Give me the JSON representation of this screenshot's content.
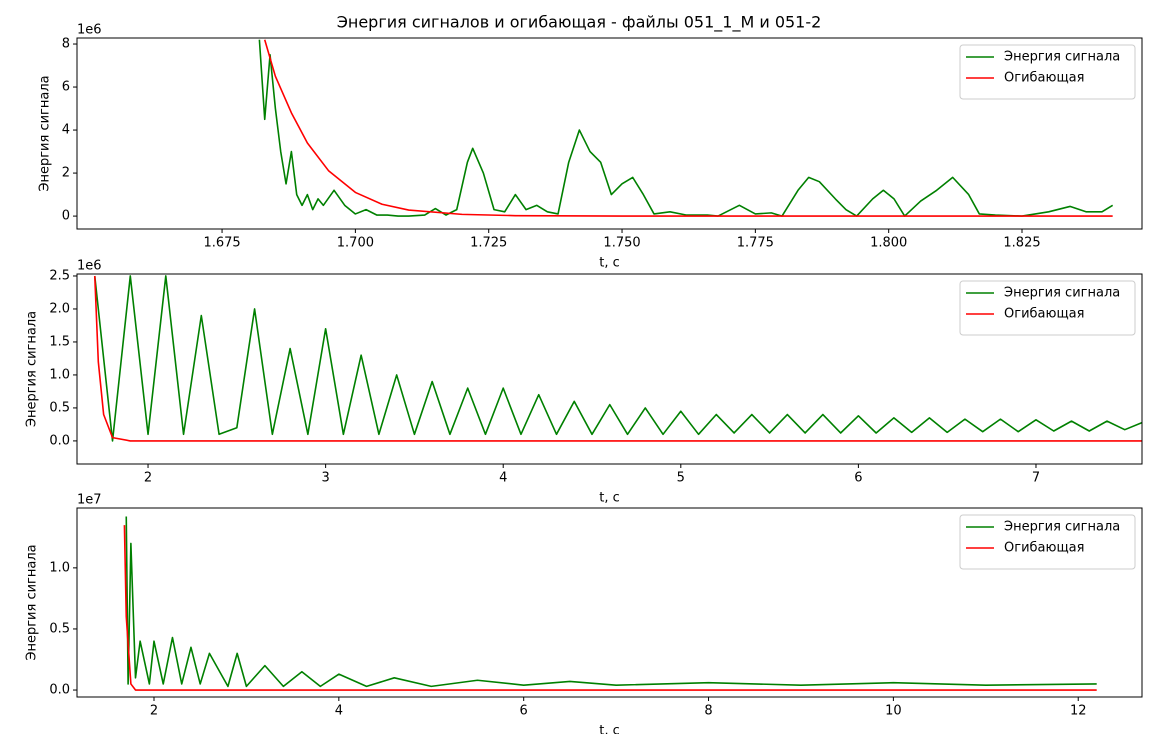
{
  "title": "Энергия сигналов и огибающая - файлы 051_1_M и 051-2",
  "chart_data": [
    {
      "type": "line",
      "x_label": "t, с",
      "y_label": "Энергия сигнала",
      "offset_label": "1e6",
      "legend": "upper right",
      "grid": false,
      "xlim": [
        1.6478,
        1.8475
      ],
      "ylim": [
        -0.6,
        8.28
      ],
      "xticks": [
        1.675,
        {
          "value": 1.7,
          "label": "1.700"
        },
        1.725,
        {
          "value": 1.75,
          "label": "1.750"
        },
        1.775,
        {
          "value": 1.8,
          "label": "1.800"
        },
        1.825
      ],
      "yticks": [
        0,
        2,
        4,
        6,
        8
      ],
      "series": [
        {
          "name": "Энергия сигнала",
          "color": "#008000",
          "x": [
            1.682,
            1.683,
            1.684,
            1.685,
            1.686,
            1.687,
            1.688,
            1.689,
            1.69,
            1.691,
            1.692,
            1.693,
            1.694,
            1.696,
            1.698,
            1.7,
            1.702,
            1.704,
            1.706,
            1.708,
            1.71,
            1.713,
            1.715,
            1.717,
            1.719,
            1.721,
            1.722,
            1.724,
            1.726,
            1.728,
            1.73,
            1.732,
            1.734,
            1.736,
            1.738,
            1.74,
            1.742,
            1.744,
            1.746,
            1.748,
            1.75,
            1.752,
            1.754,
            1.756,
            1.759,
            1.762,
            1.766,
            1.768,
            1.772,
            1.775,
            1.778,
            1.78,
            1.783,
            1.785,
            1.787,
            1.79,
            1.792,
            1.794,
            1.797,
            1.799,
            1.801,
            1.803,
            1.806,
            1.809,
            1.812,
            1.815,
            1.817,
            1.82,
            1.825,
            1.83,
            1.834,
            1.837,
            1.84,
            1.842
          ],
          "values": [
            8.2,
            4.5,
            7.5,
            5,
            3,
            1.5,
            3,
            1,
            0.5,
            1,
            0.3,
            0.8,
            0.5,
            1.2,
            0.5,
            0.1,
            0.3,
            0.05,
            0.05,
            0,
            0,
            0.05,
            0.35,
            0.05,
            0.3,
            2.5,
            3.15,
            2,
            0.3,
            0.2,
            1,
            0.3,
            0.5,
            0.2,
            0.1,
            2.5,
            4,
            3,
            2.5,
            1,
            1.5,
            1.8,
            1,
            0.1,
            0.2,
            0.05,
            0.05,
            0,
            0.5,
            0.1,
            0.15,
            0,
            1.2,
            1.8,
            1.6,
            0.8,
            0.3,
            0,
            0.8,
            1.2,
            0.8,
            0,
            0.7,
            1.2,
            1.8,
            1,
            0.1,
            0.05,
            0,
            0.2,
            0.45,
            0.2,
            0.2,
            0.5
          ]
        },
        {
          "name": "Огибающая",
          "color": "#ff0000",
          "x": [
            1.683,
            1.685,
            1.688,
            1.691,
            1.695,
            1.7,
            1.705,
            1.71,
            1.72,
            1.73,
            1.75,
            1.8,
            1.842
          ],
          "values": [
            8.2,
            6.5,
            4.8,
            3.4,
            2.1,
            1.1,
            0.55,
            0.28,
            0.08,
            0.02,
            0,
            0,
            0
          ]
        }
      ]
    },
    {
      "type": "line",
      "x_label": "t, с",
      "y_label": "Энергия сигнала",
      "offset_label": "1e6",
      "legend": "upper right",
      "grid": false,
      "xlim": [
        1.6,
        7.597
      ],
      "ylim": [
        -0.35,
        2.53
      ],
      "xticks": [
        2,
        3,
        4,
        5,
        6,
        7
      ],
      "yticks": [
        {
          "value": 0,
          "label": "0.0"
        },
        0.5,
        {
          "value": 1,
          "label": "1.0"
        },
        1.5,
        {
          "value": 2,
          "label": "2.0"
        },
        2.5
      ],
      "series": [
        {
          "name": "Энергия сигнала",
          "color": "#008000",
          "x": [
            1.7,
            1.8,
            1.9,
            2.0,
            2.1,
            2.2,
            2.3,
            2.4,
            2.5,
            2.6,
            2.7,
            2.8,
            2.9,
            3.0,
            3.1,
            3.2,
            3.3,
            3.4,
            3.5,
            3.6,
            3.7,
            3.8,
            3.9,
            4.0,
            4.1,
            4.2,
            4.3,
            4.4,
            4.5,
            4.6,
            4.7,
            4.8,
            4.9,
            5.0,
            5.1,
            5.2,
            5.3,
            5.4,
            5.5,
            5.6,
            5.7,
            5.8,
            5.9,
            6.0,
            6.1,
            6.2,
            6.3,
            6.4,
            6.5,
            6.6,
            6.7,
            6.8,
            6.9,
            7.0,
            7.1,
            7.2,
            7.3,
            7.4,
            7.5,
            7.6
          ],
          "values": [
            2.5,
            0,
            2.5,
            0.1,
            2.5,
            0.1,
            1.9,
            0.1,
            0.2,
            2,
            0.1,
            1.4,
            0.1,
            1.7,
            0.1,
            1.3,
            0.1,
            1,
            0.1,
            0.9,
            0.1,
            0.8,
            0.1,
            0.8,
            0.1,
            0.7,
            0.1,
            0.6,
            0.1,
            0.55,
            0.1,
            0.5,
            0.1,
            0.45,
            0.1,
            0.4,
            0.12,
            0.4,
            0.12,
            0.4,
            0.12,
            0.4,
            0.12,
            0.38,
            0.12,
            0.35,
            0.13,
            0.35,
            0.13,
            0.33,
            0.14,
            0.33,
            0.14,
            0.32,
            0.15,
            0.3,
            0.15,
            0.3,
            0.17,
            0.28
          ]
        },
        {
          "name": "Огибающая",
          "color": "#ff0000",
          "x": [
            1.7,
            1.72,
            1.75,
            1.8,
            1.9,
            7.6
          ],
          "values": [
            2.5,
            1.2,
            0.4,
            0.05,
            0,
            0
          ]
        }
      ]
    },
    {
      "type": "line",
      "x_label": "t, с",
      "y_label": "Энергия сигнала",
      "offset_label": "1e7",
      "legend": "upper right",
      "grid": false,
      "xlim": [
        1.167,
        12.69
      ],
      "ylim": [
        -0.057,
        1.49
      ],
      "xticks": [
        2,
        4,
        6,
        8,
        10,
        12
      ],
      "yticks": [
        {
          "value": 0,
          "label": "0.0"
        },
        0.5,
        {
          "value": 1,
          "label": "1.0"
        }
      ],
      "series": [
        {
          "name": "Энергия сигнала",
          "color": "#008000",
          "x": [
            1.7,
            1.72,
            1.75,
            1.8,
            1.85,
            1.95,
            2.0,
            2.1,
            2.2,
            2.3,
            2.4,
            2.5,
            2.6,
            2.8,
            2.9,
            3.0,
            3.2,
            3.4,
            3.6,
            3.8,
            4.0,
            4.3,
            4.6,
            5.0,
            5.5,
            6.0,
            6.5,
            7.0,
            8.0,
            9.0,
            10.0,
            11.0,
            12.2
          ],
          "values": [
            1.42,
            0.05,
            1.2,
            0.1,
            0.4,
            0.05,
            0.4,
            0.05,
            0.43,
            0.05,
            0.35,
            0.05,
            0.3,
            0.03,
            0.3,
            0.03,
            0.2,
            0.03,
            0.15,
            0.03,
            0.13,
            0.03,
            0.1,
            0.03,
            0.08,
            0.04,
            0.07,
            0.04,
            0.06,
            0.04,
            0.06,
            0.04,
            0.05
          ]
        },
        {
          "name": "Огибающая",
          "color": "#ff0000",
          "x": [
            1.68,
            1.7,
            1.75,
            1.8,
            12.2
          ],
          "values": [
            1.35,
            0.6,
            0.05,
            0,
            0
          ]
        }
      ]
    }
  ]
}
